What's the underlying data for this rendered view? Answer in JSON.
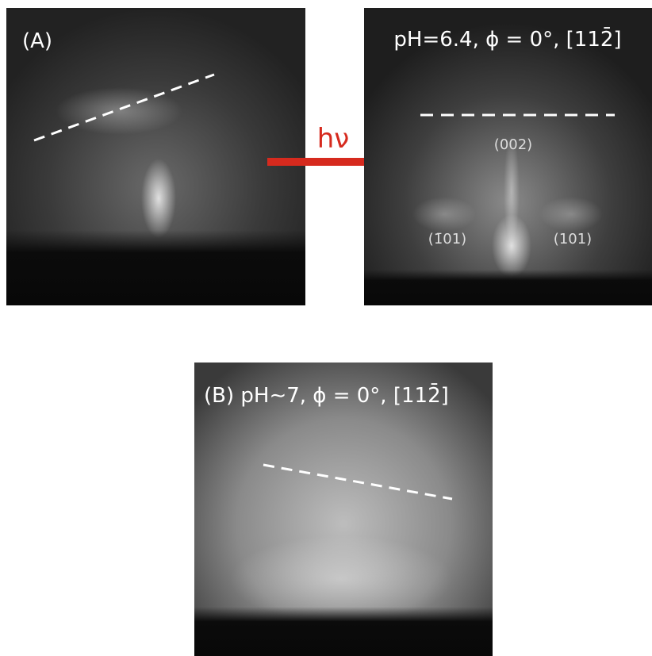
{
  "panels": [
    {
      "label": "(A)"
    },
    {
      "label": "pH=6.4,  ϕ = 0°,  [112̄]",
      "spots": [
        "(002)",
        "(1̄01)",
        "(101)"
      ]
    },
    {
      "label": "(B) pH∼7,  ϕ = 0°,  [112̄]"
    }
  ],
  "arrow": {
    "label": "hν"
  }
}
